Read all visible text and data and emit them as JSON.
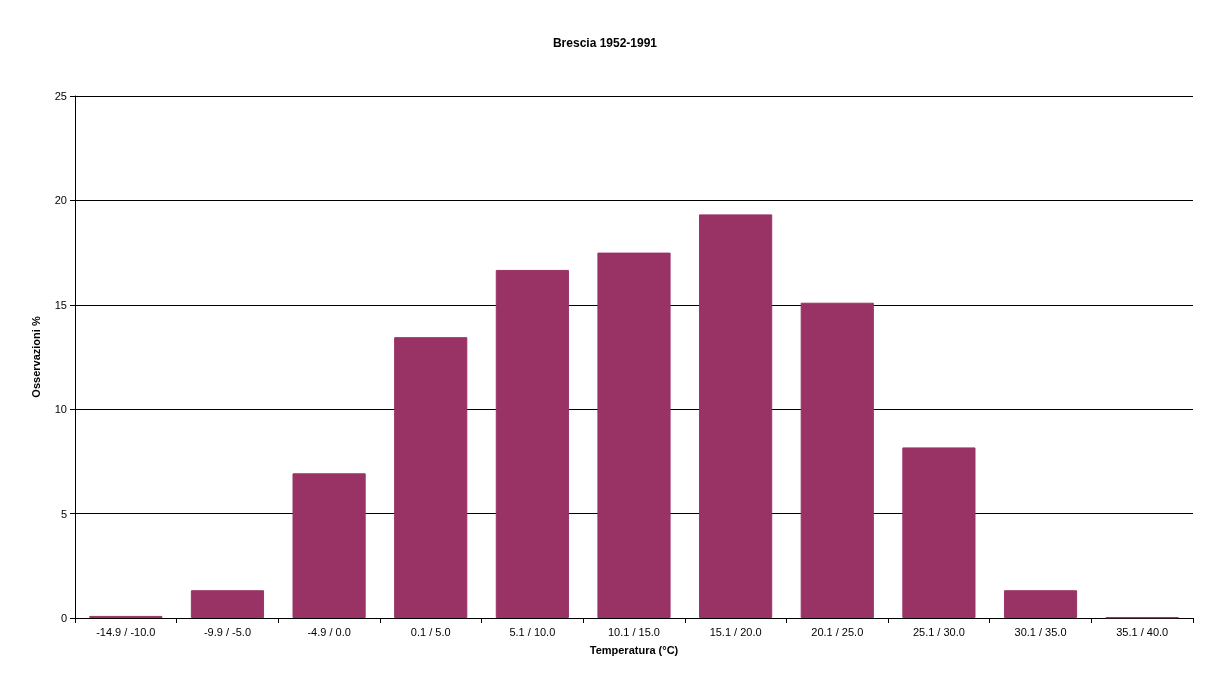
{
  "chart_data": {
    "type": "bar",
    "title": "Brescia 1952-1991",
    "xlabel": "Temperatura (°C)",
    "ylabel": "Osservazioni %",
    "categories": [
      "-14.9 / -10.0",
      "-9.9 / -5.0",
      "-4.9 / 0.0",
      "0.1 / 5.0",
      "5.1 / 10.0",
      "10.1 / 15.0",
      "15.1 / 20.0",
      "20.1 / 25.0",
      "25.1 / 30.0",
      "30.1 / 35.0",
      "35.1 / 40.0"
    ],
    "values": [
      0.1,
      1.33,
      6.93,
      13.45,
      16.67,
      17.5,
      19.33,
      15.1,
      8.17,
      1.33,
      0.03
    ],
    "color": "#993366",
    "ylim": [
      0,
      25
    ],
    "yticks": [
      0,
      5,
      10,
      15,
      20,
      25
    ],
    "grid": "y"
  }
}
